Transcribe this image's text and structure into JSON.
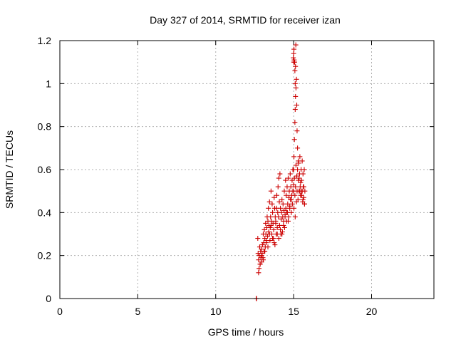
{
  "chart_data": {
    "type": "scatter",
    "title": "Day 327 of 2014, SRMTID for receiver izan",
    "xlabel": "GPS time / hours",
    "ylabel": "SRMTID / TECUs",
    "xlim": [
      0,
      24
    ],
    "ylim": [
      0,
      1.2
    ],
    "xticks": [
      0,
      5,
      10,
      15,
      20
    ],
    "yticks": [
      0,
      0.2,
      0.4,
      0.6,
      0.8,
      1,
      1.2
    ],
    "xtick_labels": [
      "0",
      "5",
      "10",
      "15",
      "20"
    ],
    "ytick_labels": [
      "0",
      "0.2",
      "0.4",
      "0.6",
      "0.8",
      "1",
      "1.2"
    ],
    "grid": true,
    "marker": "+",
    "color": "#cc0000",
    "series": [
      {
        "name": "SRMTID",
        "x": [
          12.6,
          12.62,
          12.7,
          12.72,
          12.75,
          12.78,
          12.8,
          12.82,
          12.85,
          12.88,
          12.9,
          12.93,
          12.95,
          12.98,
          13.0,
          13.03,
          13.05,
          13.08,
          13.1,
          13.12,
          13.15,
          13.18,
          13.2,
          13.22,
          13.25,
          13.28,
          13.3,
          13.33,
          13.35,
          13.38,
          13.4,
          13.42,
          13.45,
          13.48,
          13.5,
          13.52,
          13.55,
          13.58,
          13.6,
          13.62,
          13.65,
          13.68,
          13.7,
          13.72,
          13.75,
          13.78,
          13.8,
          13.82,
          13.85,
          13.88,
          13.9,
          13.92,
          13.95,
          13.98,
          14.0,
          14.03,
          14.05,
          14.08,
          14.1,
          14.12,
          14.15,
          14.18,
          14.2,
          14.22,
          14.25,
          14.28,
          14.3,
          14.32,
          14.35,
          14.38,
          14.4,
          14.42,
          14.45,
          14.48,
          14.5,
          14.52,
          14.55,
          14.58,
          14.6,
          14.62,
          14.65,
          14.68,
          14.7,
          14.72,
          14.75,
          14.78,
          14.8,
          14.82,
          14.85,
          14.88,
          14.9,
          14.92,
          14.95,
          14.98,
          15.0,
          15.02,
          15.05,
          15.08,
          15.1,
          15.12,
          15.15,
          15.18,
          15.2,
          15.22,
          15.25,
          15.28,
          15.3,
          15.32,
          15.35,
          15.38,
          15.4,
          15.42,
          15.45,
          15.48,
          15.5,
          15.52,
          15.55,
          15.58,
          15.6,
          15.62,
          15.65,
          15.68,
          15.7,
          15.72,
          12.75,
          12.85,
          12.95,
          13.05,
          13.15,
          13.25,
          13.35,
          13.45,
          13.55,
          13.65,
          13.75,
          13.85,
          13.95,
          14.05,
          14.15,
          14.25,
          14.35,
          14.45,
          14.55,
          14.65,
          14.75,
          14.85,
          14.95,
          15.0,
          15.02,
          15.05,
          15.08,
          15.1,
          15.12,
          15.15,
          15.18,
          15.2,
          15.22,
          15.25,
          15.3,
          15.35,
          15.4,
          15.45,
          15.5,
          15.55,
          15.6,
          15.65,
          15.7,
          15.02,
          15.04,
          15.06,
          15.08,
          15.1,
          15.12,
          15.14,
          14.98,
          15.0,
          15.01,
          15.03
        ],
        "y": [
          0.0,
          0.0,
          0.28,
          0.21,
          0.18,
          0.14,
          0.2,
          0.24,
          0.16,
          0.22,
          0.19,
          0.23,
          0.17,
          0.21,
          0.25,
          0.19,
          0.3,
          0.26,
          0.22,
          0.32,
          0.28,
          0.24,
          0.35,
          0.3,
          0.27,
          0.33,
          0.38,
          0.29,
          0.36,
          0.42,
          0.31,
          0.34,
          0.45,
          0.27,
          0.33,
          0.38,
          0.5,
          0.36,
          0.3,
          0.44,
          0.4,
          0.35,
          0.28,
          0.32,
          0.47,
          0.42,
          0.25,
          0.38,
          0.35,
          0.3,
          0.42,
          0.48,
          0.33,
          0.4,
          0.52,
          0.38,
          0.56,
          0.45,
          0.34,
          0.58,
          0.42,
          0.3,
          0.37,
          0.4,
          0.46,
          0.31,
          0.38,
          0.44,
          0.36,
          0.41,
          0.5,
          0.33,
          0.39,
          0.55,
          0.42,
          0.48,
          0.36,
          0.52,
          0.4,
          0.44,
          0.56,
          0.38,
          0.47,
          0.5,
          0.43,
          0.58,
          0.46,
          0.52,
          0.4,
          0.48,
          0.55,
          0.44,
          0.6,
          0.5,
          0.53,
          0.42,
          0.56,
          0.48,
          0.38,
          0.52,
          0.62,
          0.45,
          0.57,
          0.5,
          0.6,
          0.46,
          0.55,
          0.63,
          0.5,
          0.58,
          0.66,
          0.52,
          0.48,
          0.6,
          0.55,
          0.5,
          0.64,
          0.45,
          0.58,
          0.52,
          0.47,
          0.6,
          0.44,
          0.5,
          0.12,
          0.16,
          0.2,
          0.18,
          0.22,
          0.26,
          0.24,
          0.3,
          0.34,
          0.28,
          0.26,
          0.36,
          0.3,
          0.28,
          0.32,
          0.3,
          0.34,
          0.38,
          0.4,
          0.36,
          0.42,
          0.46,
          0.5,
          0.6,
          0.66,
          0.74,
          0.82,
          0.88,
          0.94,
          0.98,
          1.02,
          0.9,
          0.78,
          0.7,
          0.64,
          0.56,
          0.5,
          0.54,
          0.48,
          0.5,
          0.46,
          0.52,
          0.44,
          1.16,
          1.1,
          1.1,
          1.06,
          1.0,
          1.08,
          1.18,
          1.12,
          1.14,
          1.1,
          1.11
        ]
      }
    ]
  }
}
